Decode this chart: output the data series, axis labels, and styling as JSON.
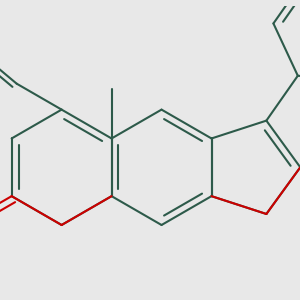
{
  "bg_color": "#e8e8e8",
  "bond_color": "#2d5a4a",
  "o_color": "#cc0000",
  "lw": 1.5,
  "figsize": [
    3.0,
    3.0
  ],
  "dpi": 100,
  "xlim": [
    -2.8,
    2.4
  ],
  "ylim": [
    -2.2,
    2.8
  ]
}
